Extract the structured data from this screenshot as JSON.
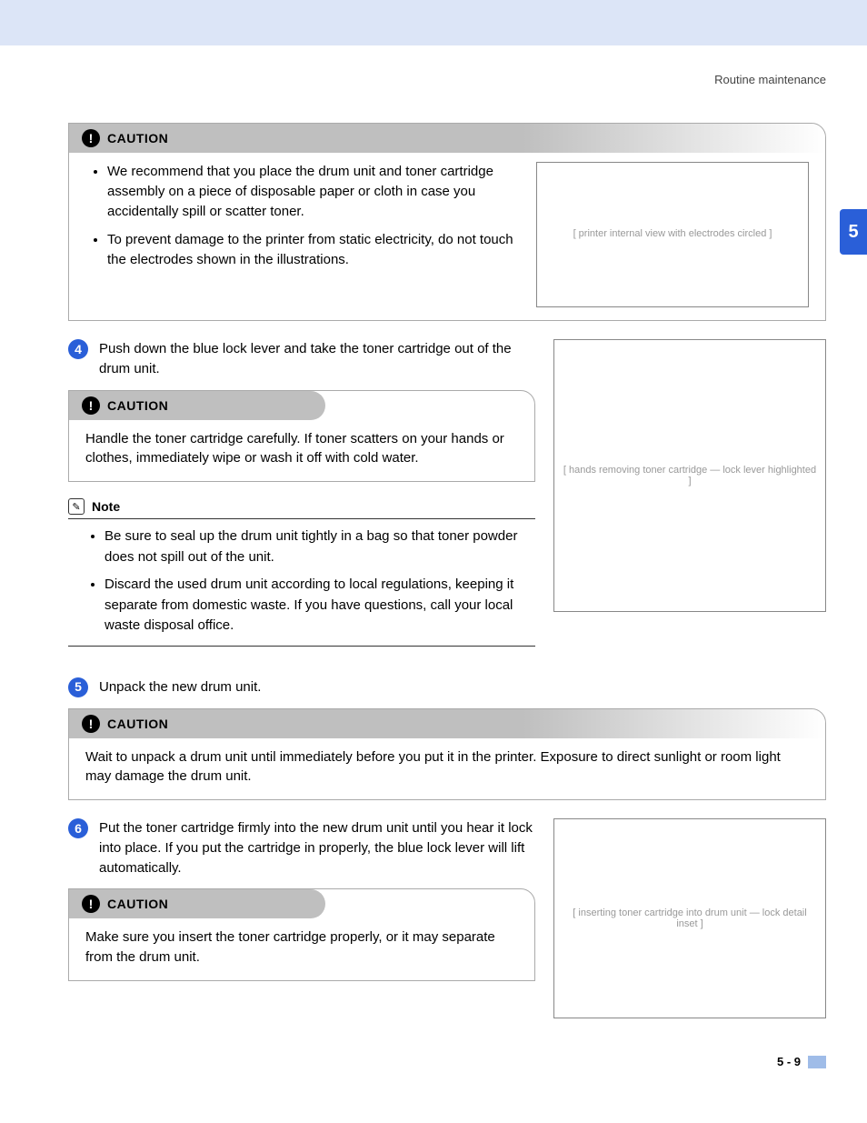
{
  "header": {
    "section_title": "Routine maintenance"
  },
  "chapter_tab": "5",
  "caution_label": "CAUTION",
  "note_label": "Note",
  "caution1": {
    "bullets": [
      "We recommend that you place the drum unit and toner cartridge assembly on a piece of disposable paper or cloth in case you accidentally spill or scatter toner.",
      "To prevent damage to the printer from static electricity, do not touch the electrodes shown in the illustrations."
    ],
    "illustration_alt": "[ printer internal view with electrodes circled ]"
  },
  "step4": {
    "num": "4",
    "text": "Push down the blue lock lever and take the toner cartridge out of the drum unit.",
    "illustration_alt": "[ hands removing toner cartridge — lock lever highlighted ]"
  },
  "caution2": {
    "text": "Handle the toner cartridge carefully. If toner scatters on your hands or clothes, immediately wipe or wash it off with cold water."
  },
  "note1": {
    "bullets": [
      "Be sure to seal up the drum unit tightly in a bag so that toner powder does not spill out of the unit.",
      "Discard the used drum unit according to local regulations, keeping it separate from domestic waste. If you have questions, call your local waste disposal office."
    ]
  },
  "step5": {
    "num": "5",
    "text": "Unpack the new drum unit."
  },
  "caution3": {
    "text": "Wait to unpack a drum unit until immediately before you put it in the printer. Exposure to direct sunlight or room light may damage the drum unit."
  },
  "step6": {
    "num": "6",
    "text": "Put the toner cartridge firmly into the new drum unit until you hear it lock into place. If you put the cartridge in properly, the blue lock lever will lift automatically.",
    "illustration_alt": "[ inserting toner cartridge into drum unit — lock detail inset ]"
  },
  "caution4": {
    "text": "Make sure you insert the toner cartridge properly, or it may separate from the drum unit."
  },
  "footer": {
    "page": "5 - 9"
  },
  "colors": {
    "banner_bg": "#dce5f7",
    "accent_blue": "#2a5fd8",
    "caution_grey": "#bfbfbf",
    "footer_bar": "#9fbce8"
  }
}
